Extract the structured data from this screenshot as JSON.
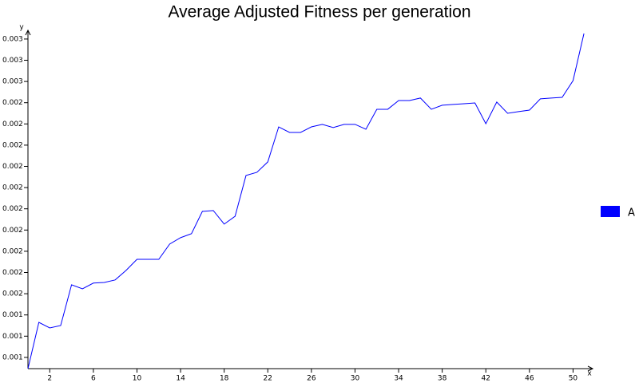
{
  "chart_data": {
    "type": "line",
    "title": "Average Adjusted Fitness per generation",
    "x_label": "x",
    "y_label": "y",
    "x": [
      0,
      1,
      2,
      3,
      4,
      5,
      6,
      7,
      8,
      9,
      10,
      11,
      12,
      13,
      14,
      15,
      16,
      17,
      18,
      19,
      20,
      21,
      22,
      23,
      24,
      25,
      26,
      27,
      28,
      29,
      30,
      31,
      32,
      33,
      34,
      35,
      36,
      37,
      38,
      39,
      40,
      41,
      42,
      43,
      44,
      45,
      46,
      47,
      48,
      49,
      50,
      51
    ],
    "series": [
      {
        "name": "A",
        "color": "#0000ff",
        "values": [
          0.001167,
          0.001385,
          0.001359,
          0.00137,
          0.001562,
          0.001543,
          0.00157,
          0.001573,
          0.001585,
          0.00163,
          0.001682,
          0.001682,
          0.001682,
          0.001754,
          0.001784,
          0.001803,
          0.001908,
          0.001912,
          0.001848,
          0.001885,
          0.002077,
          0.002092,
          0.002141,
          0.002306,
          0.00228,
          0.00228,
          0.002306,
          0.002318,
          0.002303,
          0.002318,
          0.002318,
          0.002295,
          0.002389,
          0.002389,
          0.00243,
          0.00243,
          0.002442,
          0.002389,
          0.002408,
          0.002412,
          0.002415,
          0.002419,
          0.002321,
          0.002423,
          0.00237,
          0.002378,
          0.002385,
          0.002438,
          0.002442,
          0.002445,
          0.002524,
          0.002746
        ]
      }
    ],
    "xlim": [
      0,
      51.8
    ],
    "xticks": [
      2,
      6,
      10,
      14,
      18,
      22,
      26,
      30,
      34,
      38,
      42,
      46,
      50
    ],
    "ylim": [
      0.001167,
      0.002761
    ],
    "yticks": [
      {
        "value": 0.00122,
        "label": "0.001"
      },
      {
        "value": 0.00132,
        "label": "0.001"
      },
      {
        "value": 0.00142,
        "label": "0.001"
      },
      {
        "value": 0.00152,
        "label": "0.002"
      },
      {
        "value": 0.00162,
        "label": "0.002"
      },
      {
        "value": 0.00172,
        "label": "0.002"
      },
      {
        "value": 0.00182,
        "label": "0.002"
      },
      {
        "value": 0.00192,
        "label": "0.002"
      },
      {
        "value": 0.00202,
        "label": "0.002"
      },
      {
        "value": 0.00212,
        "label": "0.002"
      },
      {
        "value": 0.00222,
        "label": "0.002"
      },
      {
        "value": 0.00232,
        "label": "0.002"
      },
      {
        "value": 0.00242,
        "label": "0.002"
      },
      {
        "value": 0.00252,
        "label": "0.003"
      },
      {
        "value": 0.00262,
        "label": "0.003"
      },
      {
        "value": 0.00272,
        "label": "0.003"
      }
    ],
    "grid": false,
    "legend": "right"
  }
}
